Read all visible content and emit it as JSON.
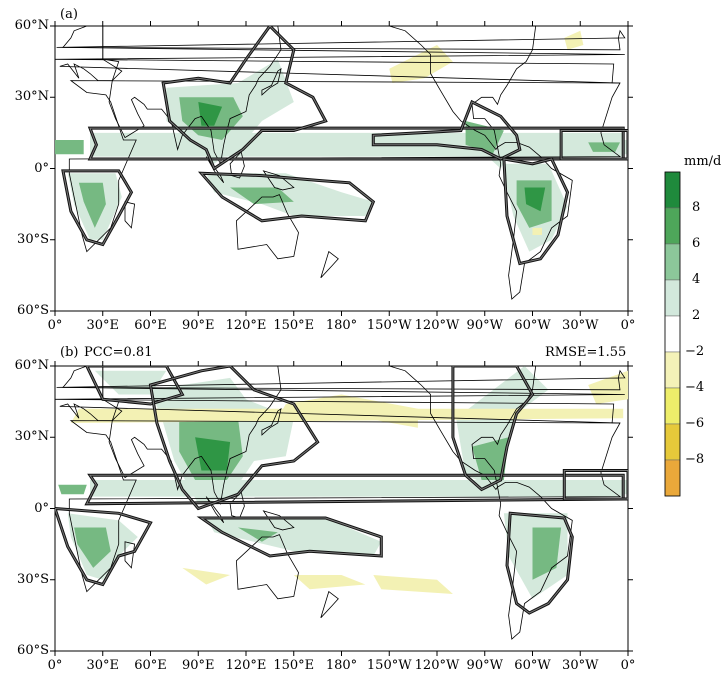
{
  "panels": [
    {
      "label": "(a)",
      "pcc": "",
      "rmse": "",
      "y_ticks": [
        "60°N",
        "30°N",
        "0°",
        "30°S",
        "60°S"
      ],
      "x_ticks": [
        "0°",
        "30°E",
        "60°E",
        "90°E",
        "120°E",
        "150°E",
        "180°",
        "150°W",
        "120°W",
        "90°W",
        "60°W",
        "30°W",
        "0°"
      ]
    },
    {
      "label": "(b)",
      "pcc": "PCC=0.81",
      "rmse": "RMSE=1.55",
      "y_ticks": [
        "60°N",
        "30°N",
        "0°",
        "30°S",
        "60°S"
      ],
      "x_ticks": [
        "0°",
        "30°E",
        "60°E",
        "90°E",
        "120°E",
        "150°E",
        "180°",
        "150°W",
        "120°W",
        "90°W",
        "60°W",
        "30°W",
        "0°"
      ]
    }
  ],
  "colorbar": {
    "unit": "mm/d",
    "labels": [
      "8",
      "6",
      "4",
      "2",
      "−2",
      "−4",
      "−6",
      "−8"
    ],
    "colors": [
      "#1f8a3c",
      "#4ea65a",
      "#8cc79a",
      "#d2e8dc",
      "#ffffff",
      "#f4f2b8",
      "#eeee6a",
      "#e6c93a",
      "#eaa83a"
    ]
  },
  "map": {
    "lat_range": [
      -60,
      60
    ],
    "lon_range": [
      0,
      360
    ],
    "wet_color_strong": "#2f9645",
    "wet_color_medium": "#76b982",
    "wet_color_light": "#d4e9dc",
    "dry_color": "#f3f1b4",
    "contour_color": "#000000"
  }
}
